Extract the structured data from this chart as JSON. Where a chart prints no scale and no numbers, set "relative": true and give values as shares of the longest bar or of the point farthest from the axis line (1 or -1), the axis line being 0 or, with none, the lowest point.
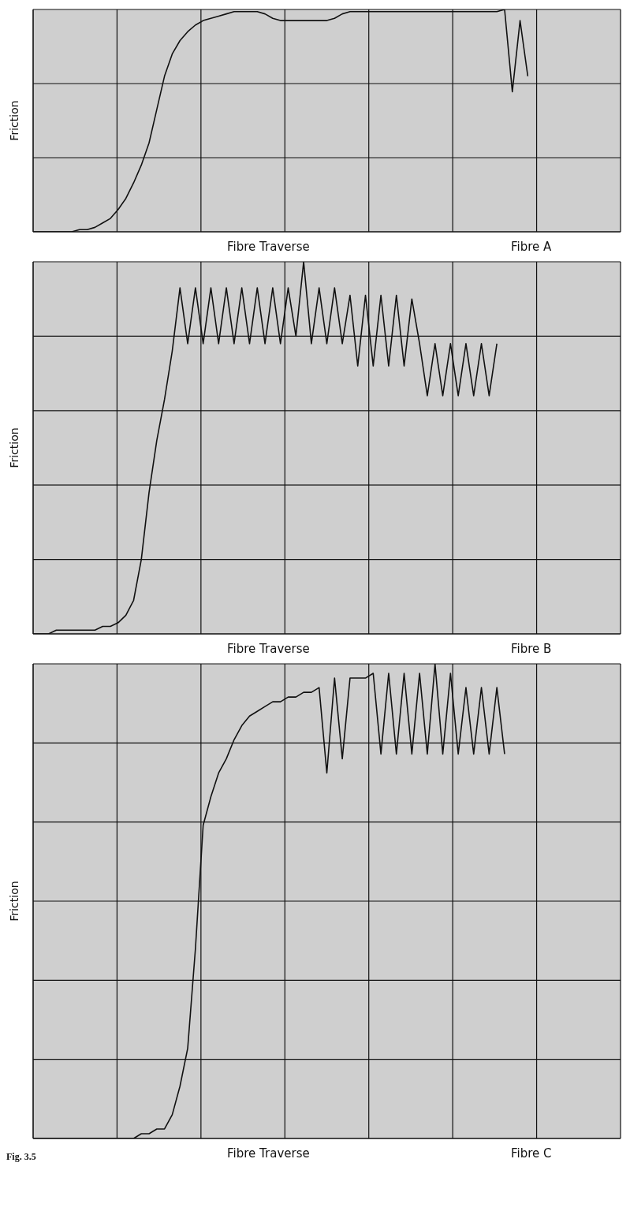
{
  "chart_data": [
    {
      "type": "line",
      "title": "Fibre A",
      "xlabel": "Fibre   Traverse",
      "ylabel": "Friction",
      "relative": true,
      "grid": true,
      "categories": [
        null,
        null,
        null,
        null,
        null,
        null,
        null,
        null,
        null,
        null,
        null,
        null,
        null,
        null,
        null,
        null,
        null,
        null,
        null,
        null,
        null,
        null,
        null,
        null,
        null,
        null,
        null,
        null,
        null,
        null,
        null,
        null,
        null,
        null,
        null,
        null,
        null,
        null,
        null,
        null,
        null,
        null,
        null,
        null,
        null,
        null,
        null,
        null,
        null,
        null,
        null,
        null,
        null,
        null,
        null,
        null,
        null,
        null,
        null,
        null,
        null,
        null,
        null,
        null,
        null,
        null,
        null,
        null,
        null,
        null,
        null,
        null,
        null,
        null,
        null,
        null,
        null
      ],
      "series": [
        {
          "color": "#111111",
          "values": [
            0,
            0,
            0,
            0,
            0,
            0,
            0.01,
            0.01,
            0.02,
            0.04,
            0.06,
            0.1,
            0.15,
            0.22,
            0.3,
            0.4,
            0.55,
            0.7,
            0.8,
            0.86,
            0.9,
            0.93,
            0.95,
            0.96,
            0.97,
            0.98,
            0.99,
            0.99,
            0.99,
            0.99,
            0.98,
            0.96,
            0.95,
            0.95,
            0.95,
            0.95,
            0.95,
            0.95,
            0.95,
            0.96,
            0.98,
            0.99,
            0.99,
            0.99,
            0.99,
            0.99,
            0.99,
            0.99,
            0.99,
            0.99,
            0.99,
            0.99,
            0.99,
            0.99,
            0.99,
            0.99,
            0.99,
            0.99,
            0.99,
            0.99,
            0.99,
            1,
            0.63,
            0.95,
            0.7,
            null,
            null,
            null,
            null,
            null,
            null,
            null,
            null,
            null,
            null,
            null,
            null
          ]
        }
      ]
    },
    {
      "type": "line",
      "title": "Fibre B",
      "xlabel": "Fibre   Traverse",
      "ylabel": "Friction",
      "relative": true,
      "grid": true,
      "categories": [
        null,
        null,
        null,
        null,
        null,
        null,
        null,
        null,
        null,
        null,
        null,
        null,
        null,
        null,
        null,
        null,
        null,
        null,
        null,
        null,
        null,
        null,
        null,
        null,
        null,
        null,
        null,
        null,
        null,
        null,
        null,
        null,
        null,
        null,
        null,
        null,
        null,
        null,
        null,
        null,
        null,
        null,
        null,
        null,
        null,
        null,
        null,
        null,
        null,
        null,
        null,
        null,
        null,
        null,
        null,
        null,
        null,
        null,
        null,
        null,
        null,
        null,
        null,
        null,
        null,
        null,
        null,
        null,
        null,
        null,
        null,
        null,
        null,
        null,
        null,
        null,
        null
      ],
      "series": [
        {
          "color": "#111111",
          "values": [
            0,
            0,
            0,
            0.01,
            0.01,
            0.01,
            0.01,
            0.01,
            0.01,
            0.02,
            0.02,
            0.03,
            0.05,
            0.09,
            0.2,
            0.38,
            0.52,
            0.63,
            0.76,
            0.93,
            0.78,
            0.93,
            0.78,
            0.93,
            0.78,
            0.93,
            0.78,
            0.93,
            0.78,
            0.93,
            0.78,
            0.93,
            0.78,
            0.93,
            0.8,
            1,
            0.78,
            0.93,
            0.78,
            0.93,
            0.78,
            0.91,
            0.72,
            0.91,
            0.72,
            0.91,
            0.72,
            0.91,
            0.72,
            0.9,
            0.78,
            0.64,
            0.78,
            0.64,
            0.78,
            0.64,
            0.78,
            0.64,
            0.78,
            0.64,
            0.78,
            null,
            null,
            null,
            null,
            null,
            null,
            null,
            null,
            null,
            null,
            null,
            null,
            null,
            null,
            null,
            null
          ]
        }
      ]
    },
    {
      "type": "line",
      "title": "Fibre C",
      "xlabel": "Fibre   Traverse",
      "ylabel": "Friction",
      "relative": true,
      "grid": true,
      "annotations": [
        "Fig. 3.5"
      ],
      "categories": [
        null,
        null,
        null,
        null,
        null,
        null,
        null,
        null,
        null,
        null,
        null,
        null,
        null,
        null,
        null,
        null,
        null,
        null,
        null,
        null,
        null,
        null,
        null,
        null,
        null,
        null,
        null,
        null,
        null,
        null,
        null,
        null,
        null,
        null,
        null,
        null,
        null,
        null,
        null,
        null,
        null,
        null,
        null,
        null,
        null,
        null,
        null,
        null,
        null,
        null,
        null,
        null,
        null,
        null,
        null,
        null,
        null,
        null,
        null,
        null,
        null,
        null,
        null,
        null,
        null,
        null,
        null,
        null,
        null,
        null,
        null,
        null,
        null,
        null,
        null,
        null,
        null
      ],
      "series": [
        {
          "color": "#111111",
          "values": [
            0,
            0,
            0,
            0,
            0,
            0,
            0,
            0,
            0,
            0,
            0,
            0,
            0,
            0,
            0.01,
            0.01,
            0.02,
            0.02,
            0.05,
            0.11,
            0.19,
            0.4,
            0.66,
            0.72,
            0.77,
            0.8,
            0.84,
            0.87,
            0.89,
            0.9,
            0.91,
            0.92,
            0.92,
            0.93,
            0.93,
            0.94,
            0.94,
            0.95,
            0.77,
            0.97,
            0.8,
            0.97,
            0.97,
            0.97,
            0.98,
            0.81,
            0.98,
            0.81,
            0.98,
            0.81,
            0.98,
            0.81,
            1,
            0.81,
            0.98,
            0.81,
            0.95,
            0.81,
            0.95,
            0.81,
            0.95,
            0.81,
            null,
            null,
            null,
            null,
            null,
            null,
            null,
            null,
            null,
            null,
            null,
            null,
            null,
            null,
            null
          ]
        }
      ]
    }
  ]
}
